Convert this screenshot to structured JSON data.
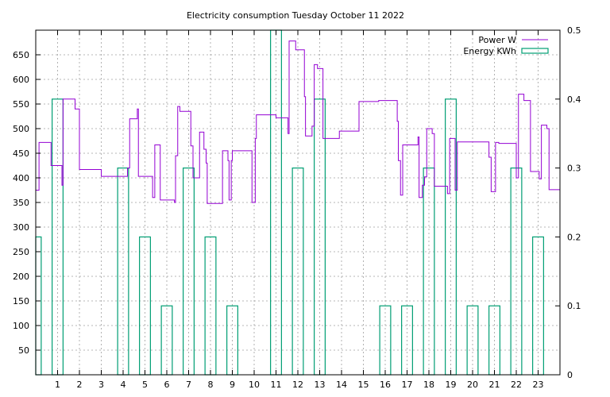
{
  "chart_data": {
    "type": "line",
    "title": "Electricity consumption Tuesday October 11 2022",
    "xlabel": "",
    "ylabel": "",
    "y2label": "",
    "xlim": [
      0,
      24
    ],
    "ylim": [
      0,
      700
    ],
    "y2lim": [
      0,
      0.5
    ],
    "x_ticks": [
      1,
      2,
      3,
      4,
      5,
      6,
      7,
      8,
      9,
      10,
      11,
      12,
      13,
      14,
      15,
      16,
      17,
      18,
      19,
      20,
      21,
      22,
      23
    ],
    "y_ticks": [
      50,
      100,
      150,
      200,
      250,
      300,
      350,
      400,
      450,
      500,
      550,
      600,
      650
    ],
    "y2_ticks": [
      0,
      0.1,
      0.2,
      0.3,
      0.4,
      0.5
    ],
    "grid": true,
    "legend_position": "top-right",
    "colors": {
      "power": "#9400d3",
      "energy": "#009e73"
    },
    "series": [
      {
        "name": "Power W",
        "axis": "left",
        "style": "step",
        "points": [
          [
            0.0,
            375
          ],
          [
            0.15,
            472
          ],
          [
            0.7,
            425
          ],
          [
            1.2,
            385
          ],
          [
            1.25,
            560
          ],
          [
            1.8,
            540
          ],
          [
            2.0,
            417
          ],
          [
            3.0,
            403
          ],
          [
            4.2,
            420
          ],
          [
            4.3,
            520
          ],
          [
            4.65,
            540
          ],
          [
            4.7,
            403
          ],
          [
            5.35,
            360
          ],
          [
            5.45,
            467
          ],
          [
            5.7,
            355
          ],
          [
            6.35,
            350
          ],
          [
            6.4,
            445
          ],
          [
            6.5,
            545
          ],
          [
            6.6,
            535
          ],
          [
            7.1,
            465
          ],
          [
            7.2,
            400
          ],
          [
            7.5,
            493
          ],
          [
            7.7,
            458
          ],
          [
            7.8,
            430
          ],
          [
            7.85,
            348
          ],
          [
            8.55,
            455
          ],
          [
            8.8,
            435
          ],
          [
            8.85,
            355
          ],
          [
            8.95,
            435
          ],
          [
            9.0,
            455
          ],
          [
            9.9,
            350
          ],
          [
            10.05,
            480
          ],
          [
            10.1,
            528
          ],
          [
            11.0,
            522
          ],
          [
            11.55,
            490
          ],
          [
            11.6,
            678
          ],
          [
            11.9,
            660
          ],
          [
            12.3,
            565
          ],
          [
            12.35,
            485
          ],
          [
            12.65,
            505
          ],
          [
            12.75,
            630
          ],
          [
            12.9,
            622
          ],
          [
            13.15,
            480
          ],
          [
            13.9,
            495
          ],
          [
            14.8,
            555
          ],
          [
            15.7,
            557
          ],
          [
            16.55,
            515
          ],
          [
            16.6,
            435
          ],
          [
            16.7,
            365
          ],
          [
            16.8,
            467
          ],
          [
            17.5,
            483
          ],
          [
            17.55,
            360
          ],
          [
            17.7,
            385
          ],
          [
            17.8,
            402
          ],
          [
            17.9,
            500
          ],
          [
            18.15,
            490
          ],
          [
            18.25,
            383
          ],
          [
            18.85,
            368
          ],
          [
            18.95,
            480
          ],
          [
            19.2,
            375
          ],
          [
            19.3,
            473
          ],
          [
            20.75,
            442
          ],
          [
            20.85,
            372
          ],
          [
            21.05,
            472
          ],
          [
            21.2,
            470
          ],
          [
            22.0,
            400
          ],
          [
            22.1,
            570
          ],
          [
            22.35,
            557
          ],
          [
            22.65,
            413
          ],
          [
            23.05,
            398
          ],
          [
            23.15,
            507
          ],
          [
            23.4,
            500
          ],
          [
            23.5,
            376
          ],
          [
            24.0,
            376
          ]
        ]
      },
      {
        "name": "Energy KWh",
        "axis": "right",
        "style": "bar",
        "x": [
          0,
          1,
          2,
          3,
          4,
          5,
          6,
          7,
          8,
          9,
          10,
          11,
          12,
          13,
          14,
          15,
          16,
          17,
          18,
          19,
          20,
          21,
          22,
          23
        ],
        "values": [
          0.2,
          0.4,
          0,
          0,
          0.3,
          0.2,
          0.1,
          0.3,
          0.2,
          0.1,
          0,
          0.5,
          0.3,
          0.4,
          0,
          0,
          0.1,
          0.1,
          0.3,
          0.4,
          0.1,
          0.1,
          0.3,
          0.2
        ]
      }
    ]
  }
}
